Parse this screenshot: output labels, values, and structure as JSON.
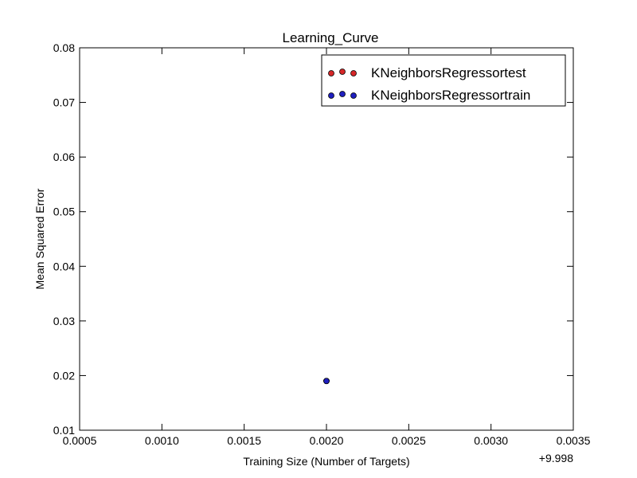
{
  "chart_data": {
    "type": "scatter",
    "title": "Learning_Curve",
    "xlabel": "Training Size (Number of Targets)",
    "ylabel": "Mean Squared Error",
    "x_offset_label": "+9.998",
    "xlim": [
      0.0005,
      0.0035
    ],
    "ylim": [
      0.01,
      0.08
    ],
    "xticks": [
      0.0005,
      0.001,
      0.0015,
      0.002,
      0.0025,
      0.003,
      0.0035
    ],
    "xtick_labels": [
      "0.0005",
      "0.0010",
      "0.0015",
      "0.0020",
      "0.0025",
      "0.0030",
      "0.0035"
    ],
    "yticks": [
      0.01,
      0.02,
      0.03,
      0.04,
      0.05,
      0.06,
      0.07,
      0.08
    ],
    "ytick_labels": [
      "0.01",
      "0.02",
      "0.03",
      "0.04",
      "0.05",
      "0.06",
      "0.07",
      "0.08"
    ],
    "grid": false,
    "legend_position": "top-right",
    "series": [
      {
        "name": "KNeighborsRegressortest",
        "color": "#d62728",
        "x": [
          0.002
        ],
        "y": [
          0.019
        ]
      },
      {
        "name": "KNeighborsRegressortrain",
        "color": "#1f1fbf",
        "x": [
          0.002
        ],
        "y": [
          0.019
        ]
      }
    ]
  }
}
